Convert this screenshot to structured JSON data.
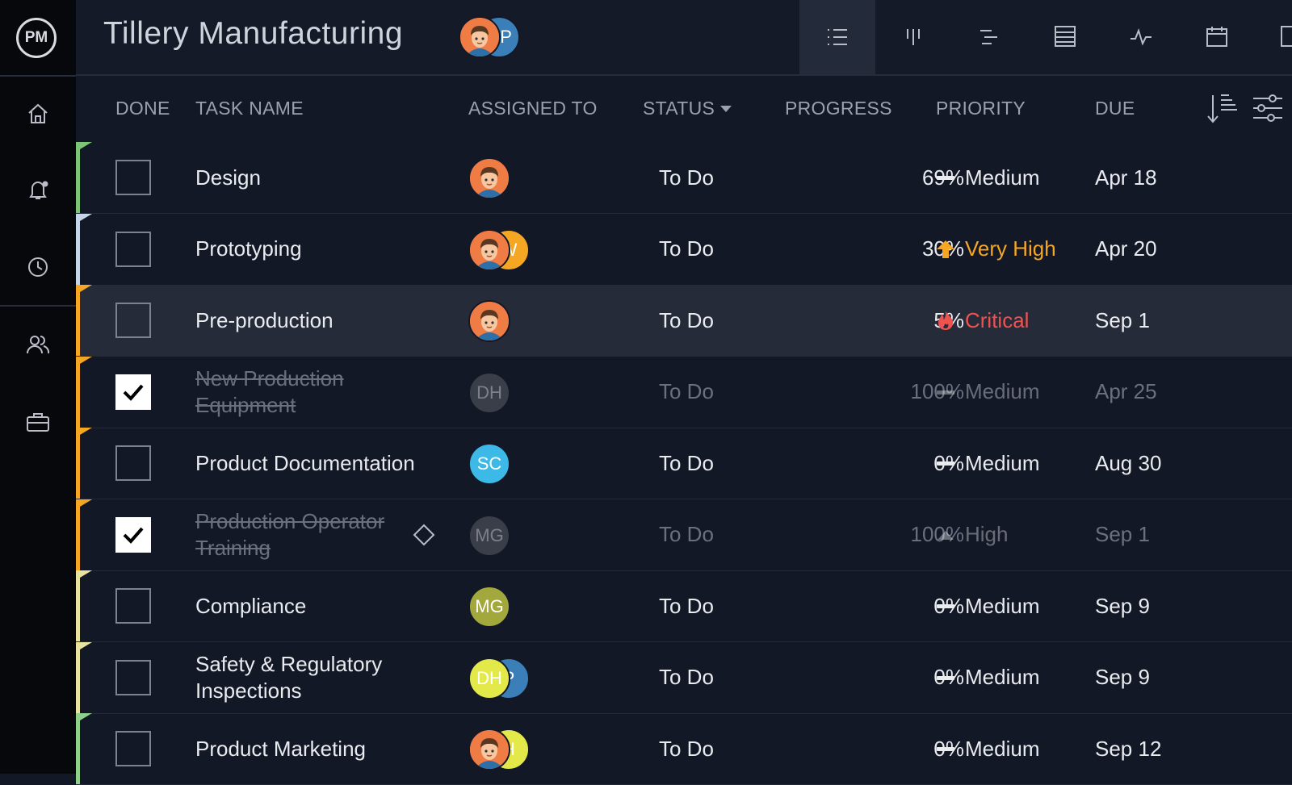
{
  "header": {
    "logo": "PM",
    "title": "Tillery Manufacturing",
    "avatars": [
      {
        "avatar": "face",
        "color": "#ef7b45"
      },
      {
        "initials": "GP",
        "color": "#3b7fb8"
      }
    ]
  },
  "table": {
    "columns": [
      "DONE",
      "TASK NAME",
      "ASSIGNED TO",
      "STATUS",
      "PROGRESS",
      "PRIORITY",
      "DUE"
    ],
    "rows": [
      {
        "task": "Design",
        "assignees": [
          {
            "avatar": "face",
            "color": "#ef7b45"
          }
        ],
        "status": "To Do",
        "progress": "69%",
        "priority": "Medium",
        "priority_icon": "dash",
        "priority_color": "#e9ebef",
        "due": "Apr 18",
        "done": false,
        "stripe": "#7cc576"
      },
      {
        "task": "Prototyping",
        "assignees": [
          {
            "avatar": "face",
            "color": "#ef7b45"
          },
          {
            "initials": "W",
            "color": "#f5a623"
          }
        ],
        "status": "To Do",
        "progress": "30%",
        "priority": "Very High",
        "priority_icon": "arrow",
        "priority_color": "#f5a623",
        "due": "Apr 20",
        "done": false,
        "stripe": "#c5d6e8"
      },
      {
        "task": "Pre-production",
        "assignees": [
          {
            "avatar": "face",
            "color": "#ef7b45"
          }
        ],
        "status": "To Do",
        "progress": "5%",
        "priority": "Critical",
        "priority_icon": "fire",
        "priority_color": "#f0524f",
        "due": "Sep 1",
        "done": false,
        "stripe": "#f5a623",
        "highlight": true
      },
      {
        "task": "New Production Equipment",
        "assignees": [
          {
            "initials": "DH",
            "color": "#6b6e75"
          }
        ],
        "status": "To Do",
        "progress": "100%",
        "priority": "Medium",
        "priority_icon": "dash",
        "priority_color": "#e9ebef",
        "due": "Apr 25",
        "done": true,
        "stripe": "#f5a623"
      },
      {
        "task": "Product Documentation",
        "assignees": [
          {
            "initials": "SC",
            "color": "#3cb9e6"
          }
        ],
        "status": "To Do",
        "progress": "0%",
        "priority": "Medium",
        "priority_icon": "dash",
        "priority_color": "#e9ebef",
        "due": "Aug 30",
        "done": false,
        "stripe": "#f5a623"
      },
      {
        "task": "Production Operator Training",
        "assignees": [
          {
            "initials": "MG",
            "color": "#6b6e75"
          }
        ],
        "status": "To Do",
        "progress": "100%",
        "priority": "High",
        "priority_icon": "triangle",
        "priority_color": "#e9ebef",
        "due": "Sep 1",
        "done": true,
        "stripe": "#f5a623",
        "milestone": true
      },
      {
        "task": "Compliance",
        "assignees": [
          {
            "initials": "MG",
            "color": "#a3a83c"
          }
        ],
        "status": "To Do",
        "progress": "0%",
        "priority": "Medium",
        "priority_icon": "dash",
        "priority_color": "#e9ebef",
        "due": "Sep 9",
        "done": false,
        "stripe": "#e8e4a0"
      },
      {
        "task": "Safety & Regulatory Inspections",
        "assignees": [
          {
            "initials": "DH",
            "color": "#e4e94a"
          },
          {
            "initials": "P",
            "color": "#3b7fb8"
          }
        ],
        "status": "To Do",
        "progress": "0%",
        "priority": "Medium",
        "priority_icon": "dash",
        "priority_color": "#e9ebef",
        "due": "Sep 9",
        "done": false,
        "stripe": "#e8e4a0"
      },
      {
        "task": "Product Marketing",
        "assignees": [
          {
            "avatar": "face",
            "color": "#ef7b45"
          },
          {
            "initials": "H",
            "color": "#e4e94a"
          }
        ],
        "status": "To Do",
        "progress": "0%",
        "priority": "Medium",
        "priority_icon": "dash",
        "priority_color": "#e9ebef",
        "due": "Sep 12",
        "done": false,
        "stripe": "#8fd18a"
      }
    ]
  }
}
